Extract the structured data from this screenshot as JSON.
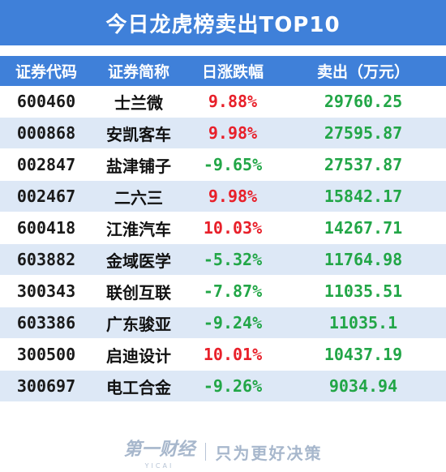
{
  "title": "今日龙虎榜卖出TOP10",
  "colors": {
    "header_bg": "#3f80d9",
    "row_alt_bg": "#dde8f6",
    "positive": "#e8202a",
    "negative": "#22a647",
    "sell_amount": "#22a647"
  },
  "chart_data": {
    "type": "table",
    "columns": [
      "证券代码",
      "证券简称",
      "日涨跌幅",
      "卖出（万元）"
    ],
    "rows": [
      {
        "code": "600460",
        "name": "士兰微",
        "change": "9.88%",
        "change_value": 9.88,
        "sell": "29760.25"
      },
      {
        "code": "000868",
        "name": "安凯客车",
        "change": "9.98%",
        "change_value": 9.98,
        "sell": "27595.87"
      },
      {
        "code": "002847",
        "name": "盐津铺子",
        "change": "-9.65%",
        "change_value": -9.65,
        "sell": "27537.87"
      },
      {
        "code": "002467",
        "name": "二六三",
        "change": "9.98%",
        "change_value": 9.98,
        "sell": "15842.17"
      },
      {
        "code": "600418",
        "name": "江淮汽车",
        "change": "10.03%",
        "change_value": 10.03,
        "sell": "14267.71"
      },
      {
        "code": "603882",
        "name": "金域医学",
        "change": "-5.32%",
        "change_value": -5.32,
        "sell": "11764.98"
      },
      {
        "code": "300343",
        "name": "联创互联",
        "change": "-7.87%",
        "change_value": -7.87,
        "sell": "11035.51"
      },
      {
        "code": "603386",
        "name": "广东骏亚",
        "change": "-9.24%",
        "change_value": -9.24,
        "sell": "11035.1"
      },
      {
        "code": "300500",
        "name": "启迪设计",
        "change": "10.01%",
        "change_value": 10.01,
        "sell": "10437.19"
      },
      {
        "code": "300697",
        "name": "电工合金",
        "change": "-9.26%",
        "change_value": -9.26,
        "sell": "9034.94"
      }
    ]
  },
  "footer": {
    "brand_cn": "第一财经",
    "brand_en": "YICAI",
    "slogan": "只为更好决策"
  }
}
